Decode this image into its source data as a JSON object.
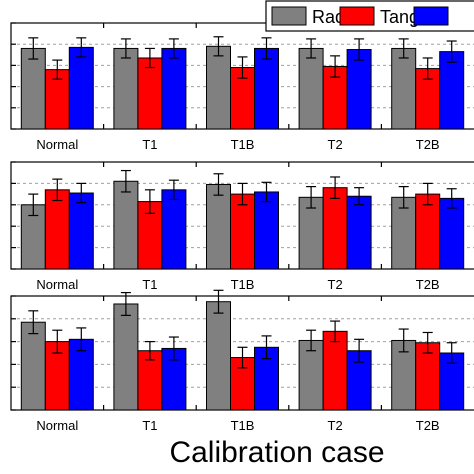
{
  "chart_data": {
    "type": "bar",
    "categories": [
      "Normal",
      "T1",
      "T1B",
      "T2",
      "T2B"
    ],
    "xlabel": "Calibration case",
    "legend": {
      "placement": "top-right",
      "entries": [
        {
          "name": "Rad",
          "color": "#808080"
        },
        {
          "name": "Tang",
          "color": "#ff0000"
        },
        {
          "name": "",
          "color": "#0000ff"
        }
      ]
    },
    "grid": "horizontal dashed",
    "panels": [
      {
        "ylim": [
          0.4,
          1.4
        ],
        "yticks": [
          0.4,
          0.6,
          0.8,
          1.0,
          1.2,
          1.4
        ],
        "series": [
          {
            "name": "Rad",
            "color": "#808080",
            "values": [
              1.16,
              1.16,
              1.18,
              1.16,
              1.16
            ],
            "errors": [
              0.1,
              0.09,
              0.09,
              0.09,
              0.09
            ]
          },
          {
            "name": "Tang",
            "color": "#ff0000",
            "values": [
              0.96,
              1.07,
              0.98,
              0.99,
              0.97
            ],
            "errors": [
              0.09,
              0.09,
              0.1,
              0.1,
              0.1
            ]
          },
          {
            "name": "",
            "color": "#0000ff",
            "values": [
              1.17,
              1.16,
              1.16,
              1.15,
              1.13
            ],
            "errors": [
              0.09,
              0.09,
              0.1,
              0.1,
              0.1
            ]
          }
        ]
      },
      {
        "ylim": [
          0.4,
          1.4
        ],
        "yticks": [
          0.4,
          0.6,
          0.8,
          1.0,
          1.2,
          1.4
        ],
        "series": [
          {
            "name": "Rad",
            "color": "#808080",
            "values": [
              1.0,
              1.22,
              1.19,
              1.07,
              1.07
            ],
            "errors": [
              0.1,
              0.1,
              0.1,
              0.1,
              0.1
            ]
          },
          {
            "name": "Tang",
            "color": "#ff0000",
            "values": [
              1.14,
              1.03,
              1.1,
              1.16,
              1.1
            ],
            "errors": [
              0.1,
              0.11,
              0.1,
              0.1,
              0.1
            ]
          },
          {
            "name": "",
            "color": "#0000ff",
            "values": [
              1.11,
              1.14,
              1.12,
              1.08,
              1.06
            ],
            "errors": [
              0.09,
              0.09,
              0.09,
              0.08,
              0.09
            ]
          }
        ]
      },
      {
        "ylim": [
          0.4,
          1.4
        ],
        "yticks": [
          0.4,
          0.6,
          0.8,
          1.0,
          1.2,
          1.4
        ],
        "series": [
          {
            "name": "Rad",
            "color": "#808080",
            "values": [
              1.17,
              1.33,
              1.35,
              1.01,
              1.01
            ],
            "errors": [
              0.1,
              0.1,
              0.1,
              0.09,
              0.1
            ]
          },
          {
            "name": "Tang",
            "color": "#ff0000",
            "values": [
              1.0,
              0.92,
              0.86,
              1.09,
              0.99
            ],
            "errors": [
              0.1,
              0.08,
              0.09,
              0.09,
              0.09
            ]
          },
          {
            "name": "",
            "color": "#0000ff",
            "values": [
              1.02,
              0.94,
              0.95,
              0.92,
              0.9
            ],
            "errors": [
              0.1,
              0.1,
              0.1,
              0.1,
              0.09
            ]
          }
        ]
      }
    ]
  }
}
